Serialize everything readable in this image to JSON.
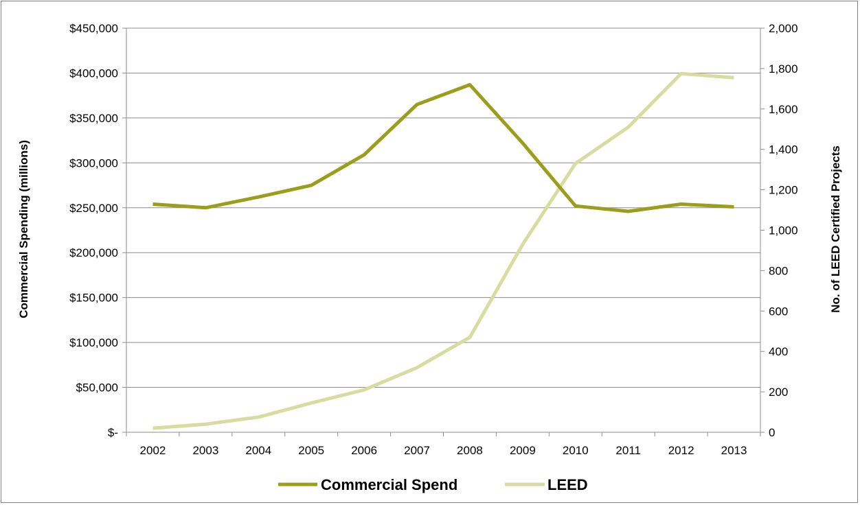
{
  "chart_data": {
    "type": "line",
    "title": "",
    "categories": [
      "2002",
      "2003",
      "2004",
      "2005",
      "2006",
      "2007",
      "2008",
      "2009",
      "2010",
      "2011",
      "2012",
      "2013"
    ],
    "series": [
      {
        "name": "Commercial Spend",
        "axis": "left",
        "color": "#9a9e1a",
        "values": [
          254000,
          250000,
          262000,
          275000,
          309000,
          365000,
          387000,
          322000,
          252000,
          246000,
          254000,
          251000
        ]
      },
      {
        "name": "LEED",
        "axis": "right",
        "color": "#d7dca0",
        "values": [
          20,
          40,
          75,
          145,
          210,
          320,
          470,
          930,
          1330,
          1510,
          1775,
          1755
        ]
      }
    ],
    "y_left": {
      "label": "Commercial Spending (millions)",
      "min": 0,
      "max": 450000,
      "step": 50000,
      "tick_labels": [
        "$-",
        "$50,000",
        "$100,000",
        "$150,000",
        "$200,000",
        "$250,000",
        "$300,000",
        "$350,000",
        "$400,000",
        "$450,000"
      ]
    },
    "y_right": {
      "label": "No. of LEED Certified Projects",
      "min": 0,
      "max": 2000,
      "step": 200,
      "tick_labels": [
        "0",
        "200",
        "400",
        "600",
        "800",
        "1,000",
        "1,200",
        "1,400",
        "1,600",
        "1,800",
        "2,000"
      ]
    },
    "grid": "horizontal",
    "legend_position": "bottom"
  }
}
